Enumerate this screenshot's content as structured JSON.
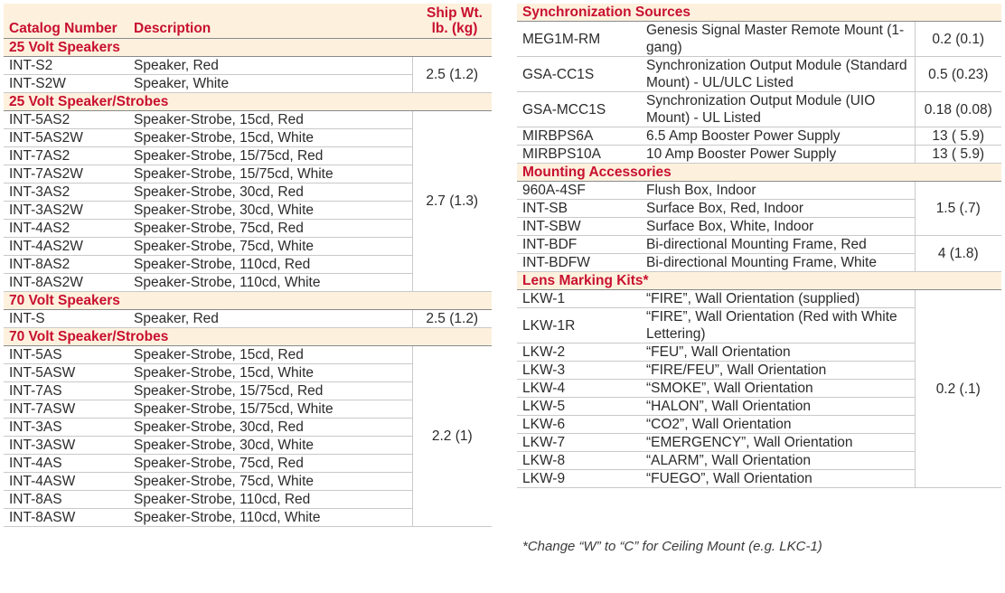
{
  "header": {
    "catalog": "Catalog Number",
    "description": "Description",
    "ship_wt": "Ship Wt. lb. (kg)"
  },
  "left_sections": [
    {
      "title": "25 Volt Speakers",
      "rows": [
        [
          "INT-S2",
          "Speaker, Red"
        ],
        [
          "INT-S2W",
          "Speaker, White"
        ]
      ],
      "weight": "2.5 (1.2)"
    },
    {
      "title": "25 Volt Speaker/Strobes",
      "rows": [
        [
          "INT-5AS2",
          "Speaker-Strobe, 15cd, Red"
        ],
        [
          "INT-5AS2W",
          "Speaker-Strobe, 15cd, White"
        ],
        [
          "INT-7AS2",
          "Speaker-Strobe, 15/75cd, Red"
        ],
        [
          "INT-7AS2W",
          "Speaker-Strobe, 15/75cd, White"
        ],
        [
          "INT-3AS2",
          "Speaker-Strobe, 30cd, Red"
        ],
        [
          "INT-3AS2W",
          "Speaker-Strobe, 30cd, White"
        ],
        [
          "INT-4AS2",
          "Speaker-Strobe, 75cd, Red"
        ],
        [
          "INT-4AS2W",
          "Speaker-Strobe, 75cd, White"
        ],
        [
          "INT-8AS2",
          "Speaker-Strobe, 110cd, Red"
        ],
        [
          "INT-8AS2W",
          "Speaker-Strobe, 110cd, White"
        ]
      ],
      "weight": "2.7 (1.3)"
    },
    {
      "title": "70 Volt Speakers",
      "rows": [
        [
          "INT-S",
          "Speaker, Red"
        ]
      ],
      "weight": "2.5 (1.2)"
    },
    {
      "title": "70 Volt Speaker/Strobes",
      "rows": [
        [
          "INT-5AS",
          "Speaker-Strobe, 15cd, Red"
        ],
        [
          "INT-5ASW",
          "Speaker-Strobe, 15cd, White"
        ],
        [
          "INT-7AS",
          "Speaker-Strobe, 15/75cd, Red"
        ],
        [
          "INT-7ASW",
          "Speaker-Strobe, 15/75cd, White"
        ],
        [
          "INT-3AS",
          "Speaker-Strobe, 30cd, Red"
        ],
        [
          "INT-3ASW",
          "Speaker-Strobe, 30cd, White"
        ],
        [
          "INT-4AS",
          "Speaker-Strobe, 75cd, Red"
        ],
        [
          "INT-4ASW",
          "Speaker-Strobe, 75cd, White"
        ],
        [
          "INT-8AS",
          "Speaker-Strobe, 110cd, Red"
        ],
        [
          "INT-8ASW",
          "Speaker-Strobe, 110cd, White"
        ]
      ],
      "weight": "2.2 (1)"
    }
  ],
  "right_sections": [
    {
      "title": "Synchronization Sources",
      "groups": [
        {
          "rows": [
            [
              "MEG1M-RM",
              "Genesis Signal Master Remote Mount (1-gang)"
            ]
          ],
          "weight": "0.2  (0.1)"
        },
        {
          "rows": [
            [
              "GSA-CC1S",
              "Synchronization Output Module (Standard Mount) - UL/ULC Listed"
            ]
          ],
          "weight": "0.5  (0.23)"
        },
        {
          "rows": [
            [
              "GSA-MCC1S",
              "Synchronization Output Module (UIO Mount) - UL Listed"
            ]
          ],
          "weight": "0.18 (0.08)"
        },
        {
          "rows": [
            [
              "MIRBPS6A",
              "6.5 Amp Booster Power Supply"
            ]
          ],
          "weight": "13 ( 5.9)"
        },
        {
          "rows": [
            [
              "MIRBPS10A",
              "10 Amp Booster Power Supply"
            ]
          ],
          "weight": "13 ( 5.9)"
        }
      ]
    },
    {
      "title": "Mounting Accessories",
      "groups": [
        {
          "rows": [
            [
              "960A-4SF",
              "Flush Box, Indoor"
            ],
            [
              "INT-SB",
              "Surface Box, Red, Indoor"
            ],
            [
              "INT-SBW",
              "Surface Box, White, Indoor"
            ]
          ],
          "weight": "1.5 (.7)"
        },
        {
          "rows": [
            [
              "INT-BDF",
              "Bi-directional Mounting Frame, Red"
            ],
            [
              "INT-BDFW",
              "Bi-directional Mounting Frame, White"
            ]
          ],
          "weight": "4 (1.8)"
        }
      ]
    },
    {
      "title": "Lens Marking Kits*",
      "groups": [
        {
          "rows": [
            [
              "LKW-1",
              "“FIRE”, Wall Orientation (supplied)"
            ],
            [
              "LKW-1R",
              "“FIRE”, Wall Orientation (Red with White Lettering)"
            ],
            [
              "LKW-2",
              "“FEU”, Wall Orientation"
            ],
            [
              "LKW-3",
              "“FIRE/FEU”, Wall Orientation"
            ],
            [
              "LKW-4",
              "“SMOKE”, Wall Orientation"
            ],
            [
              "LKW-5",
              "“HALON”, Wall Orientation"
            ],
            [
              "LKW-6",
              "“CO2”, Wall Orientation"
            ],
            [
              "LKW-7",
              "“EMERGENCY”, Wall Orientation"
            ],
            [
              "LKW-8",
              "“ALARM”, Wall Orientation"
            ],
            [
              "LKW-9",
              "“FUEGO”, Wall Orientation"
            ]
          ],
          "weight": "0.2 (.1)"
        }
      ]
    }
  ],
  "footnote": "*Change “W” to “C” for Ceiling Mount (e.g. LKC-1)",
  "colors": {
    "accent": "#c8102e",
    "header_bg": "#fdf1de"
  }
}
